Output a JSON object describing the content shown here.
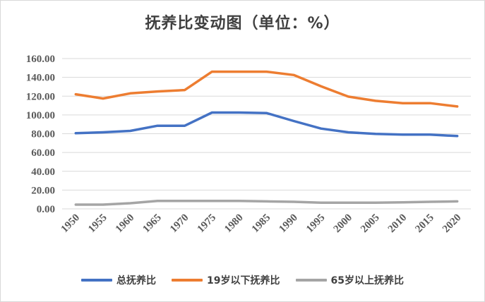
{
  "chart_data": {
    "type": "line",
    "title": "抚养比变动图（单位：%）",
    "categories": [
      "1950",
      "1955",
      "1960",
      "1965",
      "1970",
      "1975",
      "1980",
      "1985",
      "1990",
      "1995",
      "2000",
      "2005",
      "2010",
      "2015",
      "2020"
    ],
    "ylim": [
      0,
      160
    ],
    "yticks": [
      "0.00",
      "20.00",
      "40.00",
      "60.00",
      "80.00",
      "100.00",
      "120.00",
      "140.00",
      "160.00"
    ],
    "grid": true,
    "legend_position": "bottom",
    "series": [
      {
        "name": "总抚养比",
        "color": "#4472c4",
        "values": [
          80.5,
          81.5,
          83,
          88.5,
          88.5,
          102.5,
          102.5,
          102,
          93.5,
          85.5,
          81.5,
          79.8,
          79,
          79,
          77.5
        ]
      },
      {
        "name": "19岁以下抚养比",
        "color": "#ed7d31",
        "values": [
          122,
          117.5,
          123,
          125,
          126.5,
          146,
          146,
          146,
          142.5,
          130.5,
          119.5,
          115,
          112.5,
          112.5,
          109
        ]
      },
      {
        "name": "65岁以上抚养比",
        "color": "#a5a5a5",
        "values": [
          4.5,
          4.5,
          6,
          8.5,
          8.5,
          8.5,
          8.5,
          8,
          7.5,
          6.5,
          6.5,
          6.5,
          7,
          7.5,
          8
        ]
      }
    ]
  }
}
